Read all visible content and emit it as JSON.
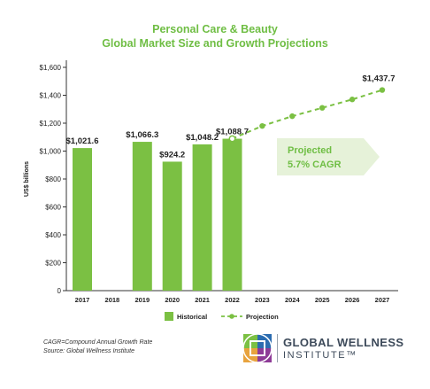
{
  "title_line1": "Personal Care & Beauty",
  "title_line2": "Global Market Size and Growth Projections",
  "notes": {
    "line1": "CAGR=Compound Annual Growth Rate",
    "line2": "Source: Global Wellness Institute"
  },
  "logo": {
    "line1": "GLOBAL WELLNESS",
    "line2": "INSTITUTE™"
  },
  "colors": {
    "green": "#7bc043",
    "title_green": "#6fbe44",
    "callout_bg": "#e6f2d9",
    "callout_text": "#6fbe44"
  },
  "chart_data": {
    "type": "bar",
    "ylabel": "US$ billions",
    "ylim": [
      0,
      1600
    ],
    "yticks": [
      0,
      200,
      400,
      600,
      800,
      1000,
      1200,
      1400,
      1600
    ],
    "ytick_labels": [
      "0",
      "$200",
      "$400",
      "$600",
      "$800",
      "$1,000",
      "$1,200",
      "$1,400",
      "$1,600"
    ],
    "categories": [
      "2017",
      "2018",
      "2019",
      "2020",
      "2021",
      "2022",
      "2023",
      "2024",
      "2025",
      "2026",
      "2027"
    ],
    "series": [
      {
        "name": "Historical",
        "type": "bar",
        "values": [
          1021.6,
          null,
          1066.3,
          924.2,
          1048.2,
          1088.7,
          null,
          null,
          null,
          null,
          null
        ],
        "labels": [
          "$1,021.6",
          "",
          "$1,066.3",
          "$924.2",
          "$1,048.2",
          "$1,088.7",
          "",
          "",
          "",
          "",
          ""
        ]
      },
      {
        "name": "Projection",
        "type": "line",
        "values": [
          null,
          null,
          null,
          null,
          null,
          1088.7,
          1180,
          1250,
          1310,
          1370,
          1437.7
        ],
        "end_label": "$1,437.7"
      }
    ],
    "callout": {
      "line1": "Projected",
      "line2": "5.7% CAGR"
    },
    "legend": {
      "position": "bottom",
      "items": [
        "Historical",
        "Projection"
      ]
    },
    "grid": false
  }
}
